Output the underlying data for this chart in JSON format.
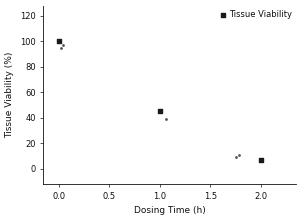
{
  "x_data": [
    0.0,
    1.0,
    2.0
  ],
  "y_data": [
    100,
    45,
    7
  ],
  "x_dots": [
    0.02,
    0.04,
    1.06,
    1.75,
    1.78
  ],
  "y_dots": [
    95,
    97,
    39,
    9,
    11
  ],
  "marker": "s",
  "marker_color": "#1a1a1a",
  "marker_size": 12,
  "dot_color": "#555555",
  "dot_size": 4,
  "xlabel": "Dosing Time (h)",
  "ylabel": "Tissue Viability (%)",
  "xlim": [
    -0.15,
    2.35
  ],
  "ylim": [
    -12,
    128
  ],
  "xticks": [
    0.0,
    0.5,
    1.0,
    1.5,
    2.0
  ],
  "xtick_labels": [
    "0.0",
    "0.5",
    "1.0",
    "1.5",
    "2.0"
  ],
  "yticks": [
    0,
    20,
    40,
    60,
    80,
    100,
    120
  ],
  "ytick_labels": [
    "0",
    "20",
    "40",
    "60",
    "80",
    "100",
    "120"
  ],
  "legend_label": "Tissue Viability",
  "bg_color": "#ffffff",
  "axes_color": "#111111",
  "font_size": 6,
  "label_font_size": 6.5,
  "legend_fontsize": 6
}
